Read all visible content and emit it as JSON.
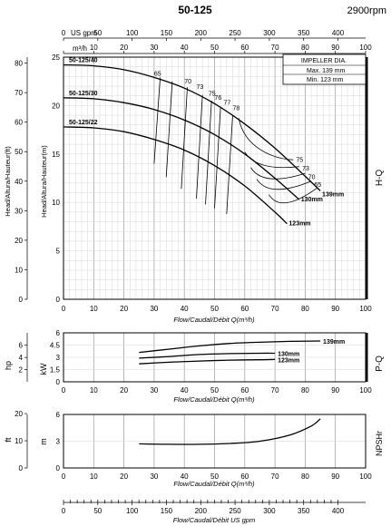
{
  "header": {
    "title": "50-125",
    "speed": "2900rpm"
  },
  "impeller": {
    "title": "IMPELLER DIA.",
    "max": "Max.  139  mm",
    "min": "Min.   123  mm"
  },
  "axes": {
    "top_usgpm_label": "US gpm",
    "top_m3h_label": "m³/h",
    "hq_left_label": "Head/Altura/Hauteur(ft)",
    "hq_right_label": "Head/Altura/Hauteur(m)",
    "hq_x_label": "Flow/Caudal/Débit Q(m³/h)",
    "pq_hp_label": "hp",
    "pq_kw_label": "kW",
    "pq_x_label": "Flow/Caudal/Débit Q(m³/h)",
    "npsh_ft_label": "ft",
    "npsh_m_label": "m",
    "npsh_x_label": "Flow/Caudal/Débit Q(m³/h)",
    "bottom_label": "Flow/Caudal/Débit  US gpm",
    "panel_hq": "H-Q",
    "panel_pq": "P-Q",
    "panel_npsh": "NPSHr"
  },
  "chart_data": [
    {
      "type": "line",
      "name": "H-Q",
      "x_unit": "m³/h",
      "y_unit": "m",
      "xlim": [
        0,
        100
      ],
      "ylim": [
        0,
        25
      ],
      "ylim_ft": [
        0,
        80
      ],
      "xticks": [
        "0",
        "10",
        "20",
        "30",
        "40",
        "50",
        "60",
        "70",
        "80",
        "90",
        "100"
      ],
      "yticks_m": [
        "0",
        "5",
        "10",
        "15",
        "20",
        "25"
      ],
      "yticks_ft": [
        "0",
        "10",
        "20",
        "30",
        "40",
        "50",
        "60",
        "70",
        "80"
      ],
      "top_usgpm_ticks": [
        "0",
        "50",
        "100",
        "150",
        "200",
        "250",
        "300",
        "350",
        "400"
      ],
      "top_m3h_ticks": [
        "0",
        "10",
        "20",
        "30",
        "40",
        "50",
        "60",
        "70",
        "80",
        "90",
        "100"
      ],
      "series": [
        {
          "name": "50-125/40",
          "label": "50-125/40",
          "end_label": "139mm",
          "x": [
            0,
            10,
            20,
            30,
            40,
            50,
            60,
            70,
            80,
            85
          ],
          "y": [
            24.2,
            24.1,
            23.7,
            22.9,
            21.8,
            20.2,
            18.1,
            15.6,
            12.7,
            11.2
          ]
        },
        {
          "name": "50-125/30",
          "label": "50-125/30",
          "end_label": "130mm",
          "x": [
            0,
            10,
            20,
            30,
            40,
            50,
            60,
            70,
            78
          ],
          "y": [
            20.8,
            20.7,
            20.3,
            19.6,
            18.5,
            17.0,
            15.0,
            12.5,
            10.3
          ]
        },
        {
          "name": "50-125/22",
          "label": "50-125/22",
          "end_label": "123mm",
          "x": [
            0,
            10,
            20,
            30,
            40,
            50,
            60,
            70,
            74
          ],
          "y": [
            17.8,
            17.7,
            17.3,
            16.5,
            15.4,
            13.8,
            11.7,
            9.0,
            7.8
          ]
        }
      ],
      "efficiency_labels": [
        "65",
        "70",
        "73",
        "75",
        "76",
        "77",
        "78",
        "75",
        "73",
        "70",
        "65"
      ]
    },
    {
      "type": "line",
      "name": "P-Q",
      "x_unit": "m³/h",
      "y_unit": "kW",
      "xlim": [
        0,
        100
      ],
      "ylim": [
        0,
        6
      ],
      "yticks_kw": [
        "0",
        "1.5",
        "3",
        "4.5",
        "6"
      ],
      "yticks_hp": [
        "2",
        "4",
        "6"
      ],
      "xticks": [
        "0",
        "10",
        "20",
        "30",
        "40",
        "50",
        "60",
        "70",
        "80",
        "90",
        "100"
      ],
      "series": [
        {
          "name": "139mm",
          "end_label": "139mm",
          "x": [
            25,
            35,
            45,
            55,
            65,
            75,
            85
          ],
          "y": [
            3.6,
            4.0,
            4.4,
            4.7,
            4.85,
            4.95,
            5.0
          ]
        },
        {
          "name": "130mm",
          "end_label": "130mm",
          "x": [
            25,
            35,
            45,
            55,
            65,
            70
          ],
          "y": [
            2.9,
            3.1,
            3.35,
            3.45,
            3.5,
            3.5
          ]
        },
        {
          "name": "123mm",
          "end_label": "123mm",
          "x": [
            25,
            35,
            45,
            55,
            65,
            70
          ],
          "y": [
            2.2,
            2.4,
            2.55,
            2.65,
            2.7,
            2.75
          ]
        }
      ]
    },
    {
      "type": "line",
      "name": "NPSHr",
      "x_unit": "m³/h",
      "y_unit": "m",
      "xlim": [
        0,
        100
      ],
      "ylim": [
        0,
        6
      ],
      "yticks_m": [
        "0",
        "3",
        "6"
      ],
      "yticks_ft": [
        "0",
        "10",
        "20"
      ],
      "xticks": [
        "0",
        "10",
        "20",
        "30",
        "40",
        "50",
        "60",
        "70",
        "80",
        "90",
        "100"
      ],
      "series": [
        {
          "name": "NPSHr",
          "x": [
            25,
            35,
            45,
            55,
            65,
            75,
            82,
            85
          ],
          "y": [
            2.7,
            2.65,
            2.65,
            2.75,
            3.0,
            3.7,
            4.7,
            5.5
          ]
        }
      ]
    },
    {
      "type": "axis",
      "name": "US gpm",
      "xticks": [
        "0",
        "50",
        "100",
        "150",
        "200",
        "250",
        "300",
        "350",
        "400"
      ]
    }
  ]
}
